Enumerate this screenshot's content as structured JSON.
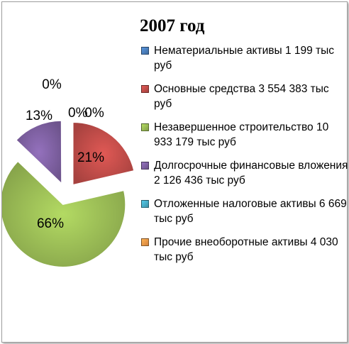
{
  "chart_data": {
    "type": "pie",
    "title": "2007 год",
    "categories": [
      "Нематериальные активы 1 199 тыс руб",
      "Основные средства 3 554 383 тыс руб",
      "Незавершенное строительство 10 933 179 тыс руб",
      "Долгосрочные финансовые вложения 2 126 436 тыс руб",
      "Отложенные налоговые активы 6 669 тыс руб",
      "Прочие внеоборотные активы 4 030 тыс руб"
    ],
    "values": [
      1199,
      3554383,
      10933179,
      2126436,
      6669,
      4030
    ],
    "data_labels": [
      "0%",
      "21%",
      "66%",
      "13%",
      "0%",
      "0%"
    ],
    "colors": [
      "#4a7ebb",
      "#be4b48",
      "#98b954",
      "#7d60a0",
      "#46aac5",
      "#f79646"
    ],
    "legend_position": "right",
    "exploded": true
  }
}
